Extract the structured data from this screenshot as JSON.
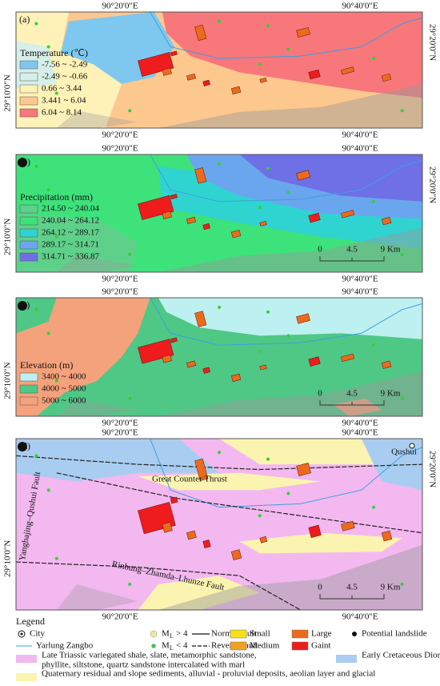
{
  "panels": [
    {
      "label": "(a)",
      "top_labels": [
        "90°20'0\"E",
        "90°40'0\"E"
      ],
      "bottom_labels": [
        "90°20'0\"E",
        "90°40'0\"E"
      ],
      "left_label": "29°10'0\"N",
      "right_label": "29°20'0\"N",
      "legend_title": "Temperature (℃)",
      "legend_items": [
        {
          "label": "-7.56 ~ -2.49",
          "color": "#7ec8ef"
        },
        {
          "label": "-2.49 ~ -0.66",
          "color": "#d6efe8"
        },
        {
          "label": "0.66 ~ 3.44",
          "color": "#fff2b8"
        },
        {
          "label": "3.441 ~ 6.04",
          "color": "#fdc88e"
        },
        {
          "label": "6.04 ~ 8.14",
          "color": "#f7777b"
        }
      ]
    },
    {
      "label": "(b)",
      "top_labels": [
        "90°20'0\"E",
        "90°40'0\"E"
      ],
      "bottom_labels": [
        "90°20'0\"E",
        "90°40'0\"E"
      ],
      "left_label": "29°10'0\"N",
      "right_label": "29°20'0\"N",
      "legend_title": "Precipitation (mm)",
      "legend_items": [
        {
          "label": "214.50 ~ 240.04",
          "color": "#5fd08a"
        },
        {
          "label": "240.04 ~ 264.12",
          "color": "#3de27a"
        },
        {
          "label": "264.12 ~ 289.17",
          "color": "#2fd4d0"
        },
        {
          "label": "289.17 ~ 314.71",
          "color": "#6aa6ee"
        },
        {
          "label": "314.71 ~ 336.87",
          "color": "#6f6fe6"
        }
      ],
      "scale_labels": [
        "0",
        "4.5",
        "9 Km"
      ]
    },
    {
      "label": "(c)",
      "top_labels": [
        "90°20'0\"E",
        "90°40'0\"E"
      ],
      "bottom_labels": [
        "90°20'0\"E",
        "90°40'0\"E"
      ],
      "left_label": "29°10'0\"N",
      "legend_title": "Elevation (m)",
      "legend_items": [
        {
          "label": "3400 ~ 4000",
          "color": "#bdf0f0"
        },
        {
          "label": "4000 ~ 5000",
          "color": "#4fc886"
        },
        {
          "label": "5000 ~ 6000",
          "color": "#f4a27c"
        }
      ],
      "scale_labels": [
        "0",
        "4.5",
        "9 Km"
      ]
    },
    {
      "label": "(d)",
      "top_labels": [
        "90°20'0\"E",
        "90°40'0\"E"
      ],
      "bottom_labels": [
        "90°20'0\"E",
        "90°40'0\"E"
      ],
      "left_label": "29°10'0\"N",
      "right_label": "29°20'0\"N",
      "annotations": [
        "Qushui",
        "Great Counter Thrust",
        "Yangbajing–Qushui Fault",
        "Rinbung–Zhamda–Lhunze Fault"
      ],
      "scale_labels": [
        "0",
        "4.5",
        "9 Km"
      ]
    }
  ],
  "legend": {
    "title": "Legend",
    "city": "City",
    "river": "Yarlung Zangbo",
    "ml_high": {
      "base": "M",
      "sub": "L",
      "rest": "> 4"
    },
    "ml_low": {
      "base": "M",
      "sub": "L",
      "rest": "< 4"
    },
    "normal_fault": "Normal fault",
    "reverse_fault": "Reverse fault",
    "sizes": [
      {
        "label": "Small",
        "color": "#f5e11a"
      },
      {
        "label": "Medium",
        "color": "#f0a020"
      },
      {
        "label": "Large",
        "color": "#ec6a1c"
      },
      {
        "label": "Gaint",
        "color": "#ee1c1c"
      }
    ],
    "potential": "Potential landslide",
    "units": [
      {
        "lines": [
          "Late Triassic variegated shale, slate, metamorphic sandstone,",
          "phyllite, siltstone, quartz sandstone intercalated with marl"
        ],
        "color": "#f3b8f0"
      },
      {
        "lines": [
          "Early Cretaceous Diorite"
        ],
        "color": "#a9cdf0"
      },
      {
        "lines": [
          "Quaternary residual and slope sediments, alluvial - proluvial deposits, aeolian layer and glacial"
        ],
        "color": "#fbf4b0"
      }
    ]
  }
}
